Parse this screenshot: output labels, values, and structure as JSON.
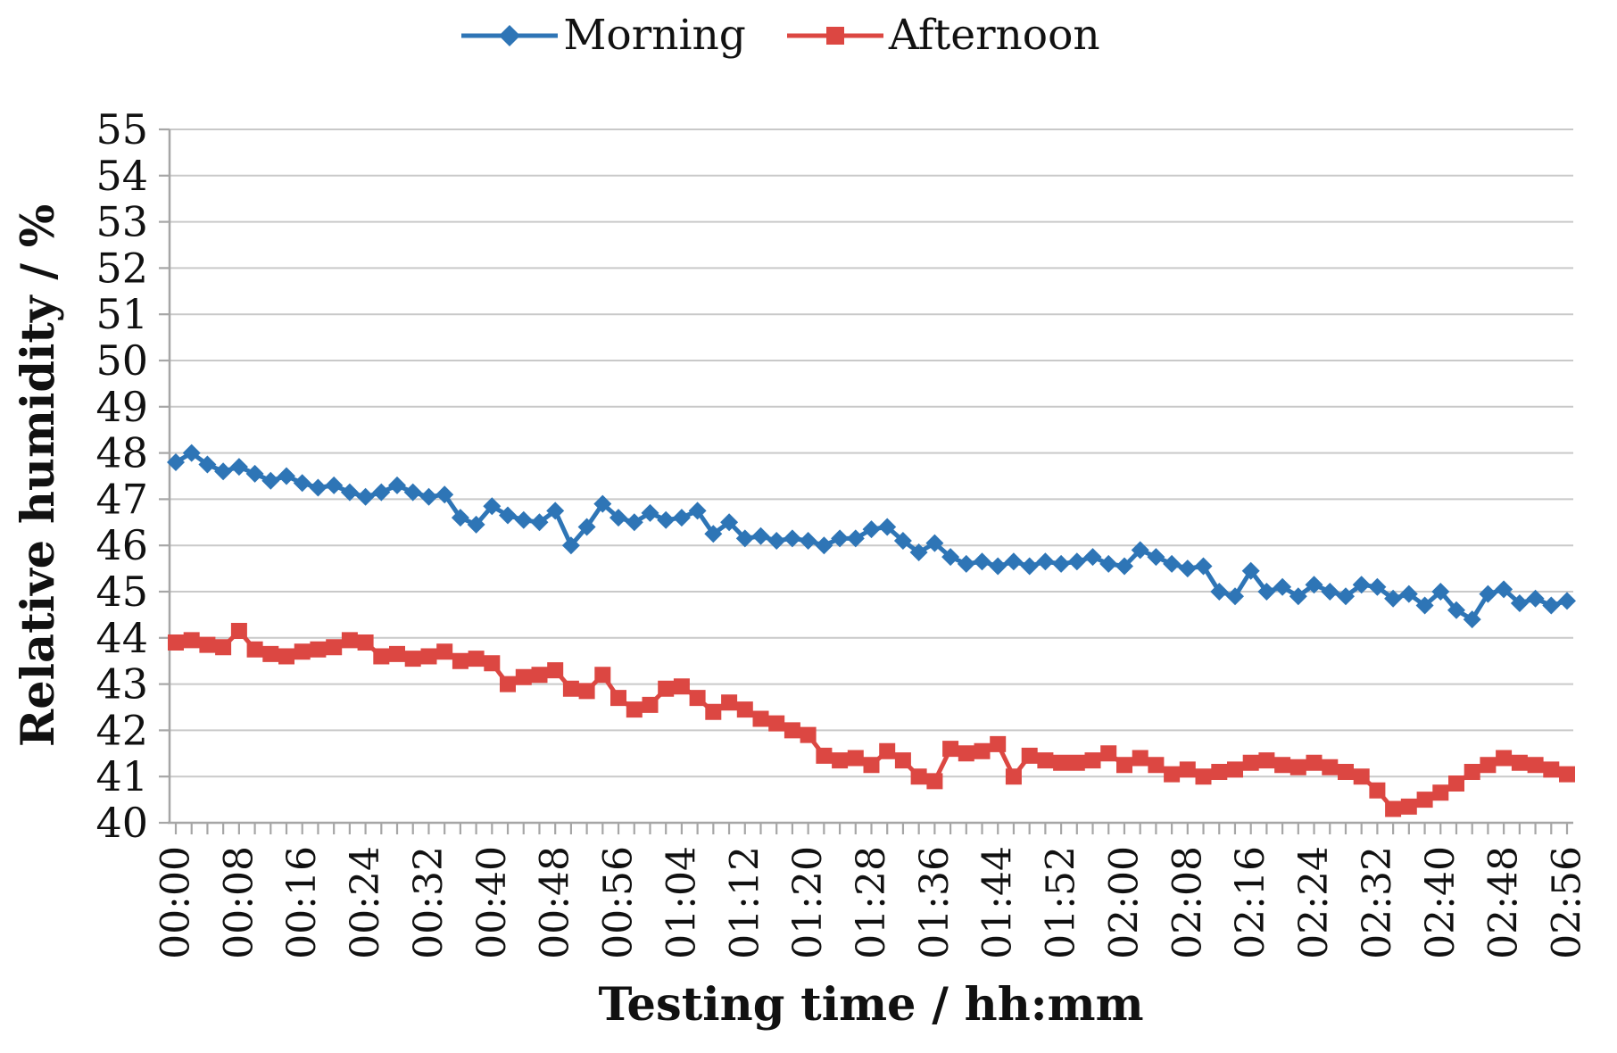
{
  "chart_data": {
    "type": "line",
    "title": "",
    "xlabel": "Testing time / hh:mm",
    "ylabel": "Relative humidity / %",
    "ylim": [
      40,
      55
    ],
    "y_ticks": [
      40,
      41,
      42,
      43,
      44,
      45,
      46,
      47,
      48,
      49,
      50,
      51,
      52,
      53,
      54,
      55
    ],
    "grid": "horizontal",
    "legend_position": "top-center",
    "x_minutes_per_point": 2,
    "x_labels_every_points": 4,
    "x_tick_labels": [
      "00:00",
      "00:08",
      "00:16",
      "00:24",
      "00:32",
      "00:40",
      "00:48",
      "00:56",
      "01:04",
      "01:12",
      "01:20",
      "01:28",
      "01:36",
      "01:44",
      "01:52",
      "02:00",
      "02:08",
      "02:16",
      "02:24",
      "02:32",
      "02:40",
      "02:48",
      "02:56"
    ],
    "series": [
      {
        "name": "Morning",
        "color": "#2E75B6",
        "marker": "diamond",
        "values": [
          47.8,
          48.0,
          47.75,
          47.6,
          47.7,
          47.55,
          47.4,
          47.5,
          47.35,
          47.25,
          47.3,
          47.15,
          47.05,
          47.15,
          47.3,
          47.15,
          47.05,
          47.1,
          46.6,
          46.45,
          46.85,
          46.65,
          46.55,
          46.5,
          46.75,
          46.0,
          46.4,
          46.9,
          46.6,
          46.5,
          46.7,
          46.55,
          46.6,
          46.75,
          46.25,
          46.5,
          46.15,
          46.2,
          46.1,
          46.15,
          46.1,
          46.0,
          46.15,
          46.15,
          46.35,
          46.4,
          46.1,
          45.85,
          46.05,
          45.75,
          45.6,
          45.65,
          45.55,
          45.65,
          45.55,
          45.65,
          45.6,
          45.65,
          45.75,
          45.6,
          45.55,
          45.9,
          45.75,
          45.6,
          45.5,
          45.55,
          45.0,
          44.9,
          45.45,
          45.0,
          45.1,
          44.9,
          45.15,
          45.0,
          44.9,
          45.15,
          45.1,
          44.85,
          44.95,
          44.7,
          45.0,
          44.6,
          44.4,
          44.95,
          45.05,
          44.75,
          44.85,
          44.7,
          44.8
        ]
      },
      {
        "name": "Afternoon",
        "color": "#DC4742",
        "marker": "square",
        "values": [
          43.9,
          43.95,
          43.85,
          43.8,
          44.15,
          43.75,
          43.65,
          43.6,
          43.7,
          43.75,
          43.8,
          43.95,
          43.9,
          43.6,
          43.65,
          43.55,
          43.6,
          43.7,
          43.5,
          43.55,
          43.45,
          43.0,
          43.15,
          43.2,
          43.3,
          42.9,
          42.85,
          43.2,
          42.7,
          42.45,
          42.55,
          42.9,
          42.95,
          42.7,
          42.4,
          42.6,
          42.45,
          42.25,
          42.15,
          42.0,
          41.9,
          41.45,
          41.35,
          41.4,
          41.25,
          41.55,
          41.35,
          41.0,
          40.9,
          41.6,
          41.5,
          41.55,
          41.7,
          41.0,
          41.45,
          41.35,
          41.3,
          41.3,
          41.35,
          41.5,
          41.25,
          41.4,
          41.25,
          41.05,
          41.15,
          41.0,
          41.1,
          41.15,
          41.3,
          41.35,
          41.25,
          41.2,
          41.3,
          41.2,
          41.1,
          41.0,
          40.7,
          40.3,
          40.35,
          40.5,
          40.65,
          40.85,
          41.1,
          41.25,
          41.4,
          41.3,
          41.25,
          41.15,
          41.05
        ]
      }
    ]
  },
  "style": {
    "grid_color": "#c9c9c9",
    "axis_color": "#a6a6a6",
    "text_color": "#111111",
    "background": "#ffffff"
  }
}
